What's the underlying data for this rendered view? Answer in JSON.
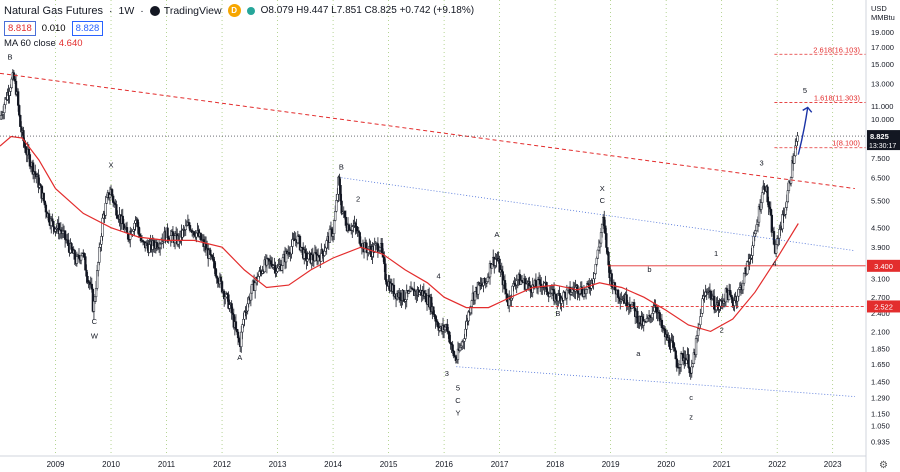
{
  "header": {
    "symbol": "Natural Gas Futures",
    "interval": "1W",
    "brand": "TradingView",
    "badge": "D",
    "ohlc": "O8.079 H9.447 L7.851 C8.825 +0.742 (+9.18%)"
  },
  "price_boxes": {
    "left": "8.818",
    "spread": "0.010",
    "right": "8.828"
  },
  "indicator": {
    "label": "MA 60 close",
    "value": "4.640"
  },
  "axis_unit": {
    "line1": "USD",
    "line2": "MMBtu"
  },
  "colors": {
    "candle": "#131722",
    "ma": "#e32d2d",
    "trendline_red": "#e32d2d",
    "channel_blue": "#4a6fd8",
    "arrow": "#1a33a6",
    "price_label_bg": "#131722",
    "red_label_bg": "#e32d2d"
  },
  "chart_data": {
    "type": "candlestick",
    "log_scale": true,
    "grid": "vertical dotted lines at year starts",
    "x_range": [
      2008.0,
      2023.6
    ],
    "y_range": [
      0.84,
      24.0
    ],
    "x_tick_labels": [
      {
        "x": 2009,
        "label": "2009"
      },
      {
        "x": 2010,
        "label": "2010"
      },
      {
        "x": 2011,
        "label": "2011"
      },
      {
        "x": 2012,
        "label": "2012"
      },
      {
        "x": 2013,
        "label": "2013"
      },
      {
        "x": 2014,
        "label": "2014"
      },
      {
        "x": 2015,
        "label": "2015"
      },
      {
        "x": 2016,
        "label": "2016"
      },
      {
        "x": 2017,
        "label": "2017"
      },
      {
        "x": 2018,
        "label": "2018"
      },
      {
        "x": 2019,
        "label": "2019"
      },
      {
        "x": 2020,
        "label": "2020"
      },
      {
        "x": 2021,
        "label": "2021"
      },
      {
        "x": 2022,
        "label": "2022"
      },
      {
        "x": 2023,
        "label": "2023"
      }
    ],
    "y_tick_labels": [
      "19.000",
      "17.000",
      "15.000",
      "13.000",
      "11.000",
      "10.000",
      "9.000",
      "7.500",
      "6.500",
      "5.500",
      "4.500",
      "3.900",
      "3.100",
      "2.700",
      "2.400",
      "2.100",
      "1.850",
      "1.650",
      "1.450",
      "1.290",
      "1.150",
      "1.050",
      "0.935"
    ],
    "price_path": [
      [
        2008.0,
        10.0
      ],
      [
        2008.1,
        11.6
      ],
      [
        2008.18,
        12.8
      ],
      [
        2008.24,
        13.6
      ],
      [
        2008.3,
        12.2
      ],
      [
        2008.36,
        9.6
      ],
      [
        2008.45,
        8.1
      ],
      [
        2008.55,
        7.3
      ],
      [
        2008.65,
        6.6
      ],
      [
        2008.75,
        5.8
      ],
      [
        2008.85,
        5.0
      ],
      [
        2008.95,
        4.6
      ],
      [
        2009.1,
        4.4
      ],
      [
        2009.25,
        3.9
      ],
      [
        2009.38,
        3.5
      ],
      [
        2009.48,
        3.8
      ],
      [
        2009.55,
        3.3
      ],
      [
        2009.65,
        2.8
      ],
      [
        2009.68,
        2.45
      ],
      [
        2009.75,
        3.2
      ],
      [
        2009.85,
        4.8
      ],
      [
        2009.95,
        5.7
      ],
      [
        2010.0,
        5.9
      ],
      [
        2010.05,
        5.4
      ],
      [
        2010.15,
        4.9
      ],
      [
        2010.3,
        4.2
      ],
      [
        2010.45,
        4.8
      ],
      [
        2010.55,
        4.0
      ],
      [
        2010.7,
        3.9
      ],
      [
        2010.9,
        4.1
      ],
      [
        2011.0,
        4.3
      ],
      [
        2011.2,
        4.1
      ],
      [
        2011.4,
        4.6
      ],
      [
        2011.55,
        4.3
      ],
      [
        2011.7,
        3.9
      ],
      [
        2011.85,
        3.4
      ],
      [
        2012.0,
        2.9
      ],
      [
        2012.15,
        2.5
      ],
      [
        2012.25,
        2.1
      ],
      [
        2012.32,
        1.9
      ],
      [
        2012.4,
        2.4
      ],
      [
        2012.55,
        2.9
      ],
      [
        2012.75,
        3.4
      ],
      [
        2012.9,
        3.5
      ],
      [
        2013.0,
        3.3
      ],
      [
        2013.2,
        3.8
      ],
      [
        2013.35,
        4.2
      ],
      [
        2013.5,
        3.6
      ],
      [
        2013.65,
        3.6
      ],
      [
        2013.8,
        3.7
      ],
      [
        2013.95,
        4.3
      ],
      [
        2014.0,
        4.4
      ],
      [
        2014.05,
        5.2
      ],
      [
        2014.1,
        6.4
      ],
      [
        2014.15,
        5.2
      ],
      [
        2014.25,
        4.6
      ],
      [
        2014.4,
        4.5
      ],
      [
        2014.55,
        3.9
      ],
      [
        2014.7,
        3.8
      ],
      [
        2014.85,
        4.0
      ],
      [
        2014.95,
        3.1
      ],
      [
        2015.1,
        2.8
      ],
      [
        2015.3,
        2.7
      ],
      [
        2015.45,
        2.8
      ],
      [
        2015.6,
        2.8
      ],
      [
        2015.75,
        2.6
      ],
      [
        2015.85,
        2.3
      ],
      [
        2015.95,
        2.1
      ],
      [
        2016.05,
        2.2
      ],
      [
        2016.15,
        1.8
      ],
      [
        2016.22,
        1.7
      ],
      [
        2016.35,
        2.0
      ],
      [
        2016.5,
        2.7
      ],
      [
        2016.62,
        2.9
      ],
      [
        2016.75,
        3.0
      ],
      [
        2016.85,
        3.5
      ],
      [
        2016.95,
        3.6
      ],
      [
        2017.05,
        3.1
      ],
      [
        2017.15,
        2.6
      ],
      [
        2017.3,
        3.1
      ],
      [
        2017.45,
        3.0
      ],
      [
        2017.6,
        2.9
      ],
      [
        2017.75,
        3.0
      ],
      [
        2017.9,
        2.8
      ],
      [
        2018.0,
        2.7
      ],
      [
        2018.1,
        2.7
      ],
      [
        2018.25,
        2.8
      ],
      [
        2018.4,
        2.9
      ],
      [
        2018.55,
        2.8
      ],
      [
        2018.68,
        3.1
      ],
      [
        2018.8,
        4.0
      ],
      [
        2018.86,
        4.8
      ],
      [
        2018.92,
        4.0
      ],
      [
        2018.97,
        3.3
      ],
      [
        2019.05,
        2.9
      ],
      [
        2019.2,
        2.7
      ],
      [
        2019.35,
        2.6
      ],
      [
        2019.5,
        2.3
      ],
      [
        2019.6,
        2.2
      ],
      [
        2019.7,
        2.3
      ],
      [
        2019.8,
        2.6
      ],
      [
        2019.9,
        2.2
      ],
      [
        2020.0,
        2.0
      ],
      [
        2020.1,
        1.9
      ],
      [
        2020.2,
        1.65
      ],
      [
        2020.3,
        1.75
      ],
      [
        2020.4,
        1.7
      ],
      [
        2020.45,
        1.5
      ],
      [
        2020.5,
        1.75
      ],
      [
        2020.6,
        2.2
      ],
      [
        2020.65,
        2.6
      ],
      [
        2020.75,
        2.9
      ],
      [
        2020.85,
        2.6
      ],
      [
        2020.95,
        2.5
      ],
      [
        2021.0,
        2.6
      ],
      [
        2021.1,
        2.8
      ],
      [
        2021.2,
        2.6
      ],
      [
        2021.35,
        2.9
      ],
      [
        2021.5,
        3.6
      ],
      [
        2021.6,
        4.2
      ],
      [
        2021.7,
        5.5
      ],
      [
        2021.78,
        6.3
      ],
      [
        2021.85,
        5.2
      ],
      [
        2021.92,
        4.3
      ],
      [
        2021.97,
        3.7
      ],
      [
        2022.02,
        4.3
      ],
      [
        2022.1,
        4.8
      ],
      [
        2022.18,
        5.6
      ],
      [
        2022.25,
        6.8
      ],
      [
        2022.32,
        8.0
      ],
      [
        2022.38,
        8.8
      ]
    ],
    "ma60_path": [
      [
        2008.0,
        8.2
      ],
      [
        2008.2,
        8.8
      ],
      [
        2008.4,
        8.7
      ],
      [
        2008.7,
        7.4
      ],
      [
        2009.0,
        6.0
      ],
      [
        2009.5,
        5.0
      ],
      [
        2010.0,
        4.5
      ],
      [
        2010.5,
        4.2
      ],
      [
        2011.0,
        4.1
      ],
      [
        2011.5,
        4.1
      ],
      [
        2012.0,
        3.9
      ],
      [
        2012.4,
        3.3
      ],
      [
        2012.8,
        2.9
      ],
      [
        2013.2,
        2.95
      ],
      [
        2013.6,
        3.3
      ],
      [
        2014.0,
        3.6
      ],
      [
        2014.5,
        3.9
      ],
      [
        2014.9,
        3.7
      ],
      [
        2015.3,
        3.3
      ],
      [
        2015.7,
        3.0
      ],
      [
        2016.0,
        2.7
      ],
      [
        2016.4,
        2.5
      ],
      [
        2016.8,
        2.5
      ],
      [
        2017.2,
        2.7
      ],
      [
        2017.6,
        2.9
      ],
      [
        2018.0,
        2.95
      ],
      [
        2018.4,
        2.85
      ],
      [
        2018.8,
        3.0
      ],
      [
        2019.2,
        2.9
      ],
      [
        2019.6,
        2.7
      ],
      [
        2020.0,
        2.45
      ],
      [
        2020.4,
        2.2
      ],
      [
        2020.8,
        2.1
      ],
      [
        2021.2,
        2.3
      ],
      [
        2021.6,
        2.8
      ],
      [
        2022.0,
        3.6
      ],
      [
        2022.38,
        4.64
      ]
    ],
    "red_trendline": {
      "from": [
        2008.0,
        14.0
      ],
      "to": [
        2023.4,
        6.0
      ]
    },
    "blue_upper": {
      "from": [
        2014.15,
        6.5
      ],
      "to": [
        2023.4,
        3.8
      ]
    },
    "blue_lower": {
      "from": [
        2016.22,
        1.62
      ],
      "to": [
        2023.4,
        1.3
      ]
    },
    "horizontal_levels": [
      {
        "price": 3.4,
        "from": 2018.95,
        "label": "3.400"
      },
      {
        "price": 2.522,
        "from": 2017.2,
        "label": "2.522"
      }
    ],
    "fib_levels": [
      {
        "price": 16.103,
        "from": 2021.95,
        "text": "2.618(16.103)"
      },
      {
        "price": 11.303,
        "from": 2021.95,
        "text": "1.618(11.303)"
      },
      {
        "price": 8.1,
        "from": 2021.95,
        "text": "1(8.100)"
      }
    ],
    "last_price": {
      "price": 8.825,
      "label": "8.825",
      "countdown": "13:30:17"
    },
    "arrow": {
      "from": [
        2022.38,
        7.7
      ],
      "to": [
        2022.55,
        10.9
      ]
    },
    "wave_labels": [
      {
        "text": "B",
        "x": 2008.18,
        "price": 15.5
      },
      {
        "text": "X",
        "x": 2010.0,
        "price": 7.0
      },
      {
        "text": "C",
        "x": 2009.7,
        "price": 2.22
      },
      {
        "text": "W",
        "x": 2009.7,
        "price": 1.99
      },
      {
        "text": "A",
        "x": 2012.32,
        "price": 1.7
      },
      {
        "text": "B",
        "x": 2014.15,
        "price": 6.9
      },
      {
        "text": "2",
        "x": 2014.45,
        "price": 5.45
      },
      {
        "text": "4",
        "x": 2015.9,
        "price": 3.1
      },
      {
        "text": "3",
        "x": 2016.05,
        "price": 1.51
      },
      {
        "text": "5",
        "x": 2016.25,
        "price": 1.36
      },
      {
        "text": "C",
        "x": 2016.25,
        "price": 1.24
      },
      {
        "text": "Y",
        "x": 2016.25,
        "price": 1.13
      },
      {
        "text": "A",
        "x": 2016.95,
        "price": 4.2
      },
      {
        "text": "B",
        "x": 2018.05,
        "price": 2.35
      },
      {
        "text": "X",
        "x": 2018.85,
        "price": 5.9
      },
      {
        "text": "C",
        "x": 2018.85,
        "price": 5.4
      },
      {
        "text": "b",
        "x": 2019.7,
        "price": 3.25
      },
      {
        "text": "a",
        "x": 2019.5,
        "price": 1.75
      },
      {
        "text": "c",
        "x": 2020.45,
        "price": 1.27
      },
      {
        "text": "z",
        "x": 2020.45,
        "price": 1.1
      },
      {
        "text": "1",
        "x": 2020.9,
        "price": 3.65
      },
      {
        "text": "2",
        "x": 2021.0,
        "price": 2.08
      },
      {
        "text": "3",
        "x": 2021.72,
        "price": 7.1
      },
      {
        "text": "4",
        "x": 2021.95,
        "price": 3.4
      },
      {
        "text": "5",
        "x": 2022.5,
        "price": 12.1
      }
    ]
  }
}
